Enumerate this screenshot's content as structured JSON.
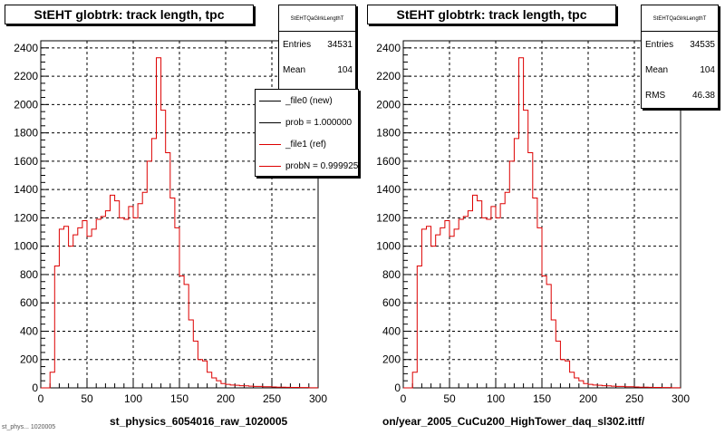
{
  "chart_data": [
    {
      "type": "histogram",
      "title": "StEHT globtrk: track length, tpc",
      "xlabel": "st_physics_6054016_raw_1020005",
      "ylabel": "",
      "xlim": [
        0,
        300
      ],
      "ylim": [
        0,
        2450
      ],
      "grid": true,
      "x_ticks": [
        0,
        50,
        100,
        150,
        200,
        250,
        300
      ],
      "y_ticks": [
        0,
        200,
        400,
        600,
        800,
        1000,
        1200,
        1400,
        1600,
        1800,
        2000,
        2200,
        2400
      ],
      "bin_width": 5,
      "bin_start": 0,
      "series": [
        {
          "name": "_file1 (ref)",
          "color": "#dd0000",
          "values": [
            0,
            0,
            110,
            860,
            1120,
            1140,
            1000,
            1080,
            1130,
            1180,
            1070,
            1120,
            1190,
            1210,
            1250,
            1360,
            1320,
            1200,
            1190,
            1280,
            1200,
            1300,
            1380,
            1600,
            1760,
            2330,
            1960,
            1660,
            1340,
            1130,
            790,
            730,
            480,
            330,
            200,
            190,
            110,
            70,
            50,
            30,
            25,
            20,
            18,
            15,
            14,
            12,
            10,
            10,
            8,
            8,
            6,
            5,
            5,
            4,
            3,
            3,
            2,
            2,
            1,
            1
          ]
        }
      ],
      "stats": {
        "name": "StEHTQaGlrkLengthT",
        "entries": "34531",
        "mean": "104"
      },
      "legend": {
        "placement": "top-right",
        "entries": [
          {
            "label": "_file0 (new)",
            "color": "#000000"
          },
          {
            "label": "prob = 1.000000",
            "color": "#000000"
          },
          {
            "label": "_file1 (ref)",
            "color": "#dd0000"
          },
          {
            "label": "probN = 0.999925",
            "color": "#dd0000"
          }
        ]
      }
    },
    {
      "type": "histogram",
      "title": "StEHT globtrk: track length, tpc",
      "xlabel": "on/year_2005_CuCu200_HighTower_daq_sl302.ittf/",
      "ylabel": "",
      "xlim": [
        0,
        300
      ],
      "ylim": [
        0,
        2450
      ],
      "grid": true,
      "x_ticks": [
        0,
        50,
        100,
        150,
        200,
        250,
        300
      ],
      "y_ticks": [
        0,
        200,
        400,
        600,
        800,
        1000,
        1200,
        1400,
        1600,
        1800,
        2000,
        2200,
        2400
      ],
      "bin_width": 5,
      "bin_start": 0,
      "series": [
        {
          "name": "",
          "color": "#dd0000",
          "values": [
            0,
            0,
            110,
            860,
            1120,
            1140,
            1000,
            1080,
            1130,
            1180,
            1070,
            1120,
            1190,
            1210,
            1250,
            1360,
            1320,
            1200,
            1190,
            1280,
            1200,
            1300,
            1380,
            1600,
            1760,
            2330,
            1960,
            1660,
            1340,
            1130,
            790,
            730,
            480,
            330,
            200,
            190,
            110,
            70,
            50,
            30,
            25,
            20,
            18,
            15,
            14,
            12,
            10,
            10,
            8,
            8,
            6,
            5,
            5,
            4,
            3,
            3,
            2,
            2,
            1,
            1
          ]
        }
      ],
      "stats": {
        "name": "StEHTQaGlrkLengthT",
        "entries": "34535",
        "mean": "104",
        "rms": "46.38"
      }
    }
  ],
  "labels": {
    "entries": "Entries",
    "mean": "Mean",
    "rms": "RMS"
  },
  "footer": "st_phys... 1020005"
}
